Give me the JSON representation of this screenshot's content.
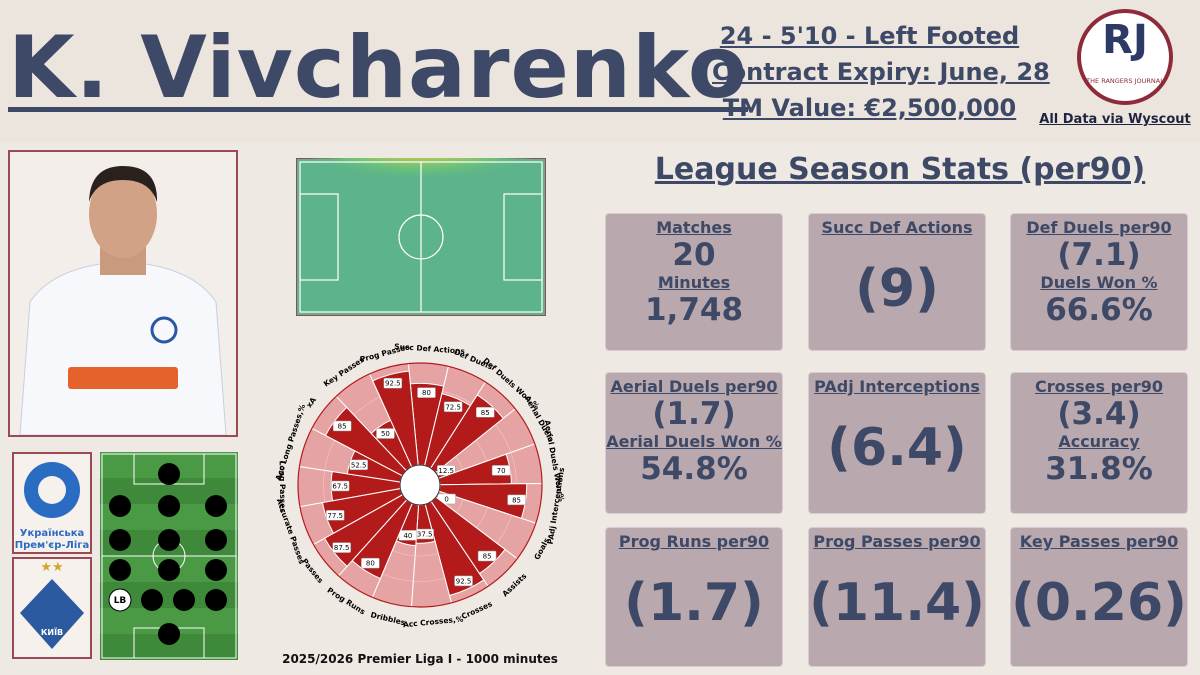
{
  "header": {
    "name": "K. Vivcharenko",
    "info": [
      "24 - 5'10 - Left Footed",
      "Contract Expiry: June, 28",
      "TM Value: €2,500,000"
    ],
    "logo": "RJ",
    "logo_text": "THE RANGERS JOURNAL",
    "source": "All Data via  Wyscout"
  },
  "stats_title": "League Season Stats (per90)",
  "stats": [
    {
      "label": "Matches",
      "value": "20",
      "label2": "Minutes",
      "value2": "1,748"
    },
    {
      "label": "Succ Def Actions",
      "value": "(9)"
    },
    {
      "label": "Def Duels per90",
      "value": "(7.1)",
      "label2": "Duels Won %",
      "value2": "66.6%"
    },
    {
      "label": "Aerial Duels per90",
      "value": "(1.7)",
      "label2": "Aerial Duels Won %",
      "value2": "54.8%"
    },
    {
      "label": "PAdj Interceptions",
      "value": "(6.4)"
    },
    {
      "label": "Crosses per90",
      "value": "(3.4)",
      "label2": "Accuracy",
      "value2": "31.8%"
    },
    {
      "label": "Prog Runs per90",
      "value": "(1.7)"
    },
    {
      "label": "Prog Passes per90",
      "value": "(11.4)"
    },
    {
      "label": "Key Passes per90",
      "value": "(0.26)"
    }
  ],
  "chart_data": {
    "type": "pizza",
    "caption": "2025/2026 Premier Liga I - 1000 minutes",
    "categories": [
      "Succ Def Actions",
      "Def Duels",
      "Def Duels Won,%",
      "Aerial Duels",
      "Aerial Duels Won,%",
      "PAdj Interceptions",
      "Goals",
      "Assists",
      "Crosses",
      "Acc Crosses,%",
      "Dribbles",
      "Prog Runs",
      "Passes",
      "Accurate Passes",
      "Long Passes",
      "Acc Long Passes,%",
      "xA",
      "Key Passes",
      "Prog Passes"
    ],
    "values": [
      80,
      72.5,
      85,
      12.5,
      70,
      85,
      0,
      85,
      92.5,
      37.5,
      40,
      80,
      87.5,
      77.5,
      67.5,
      52.5,
      85,
      50,
      92.5
    ],
    "ylim": [
      0,
      100
    ],
    "color": "#b31b1b",
    "background_color": "#e6a3a3"
  },
  "league": "Українська Прем'єр-Ліга",
  "club": "КИЇВ",
  "position": "LB"
}
